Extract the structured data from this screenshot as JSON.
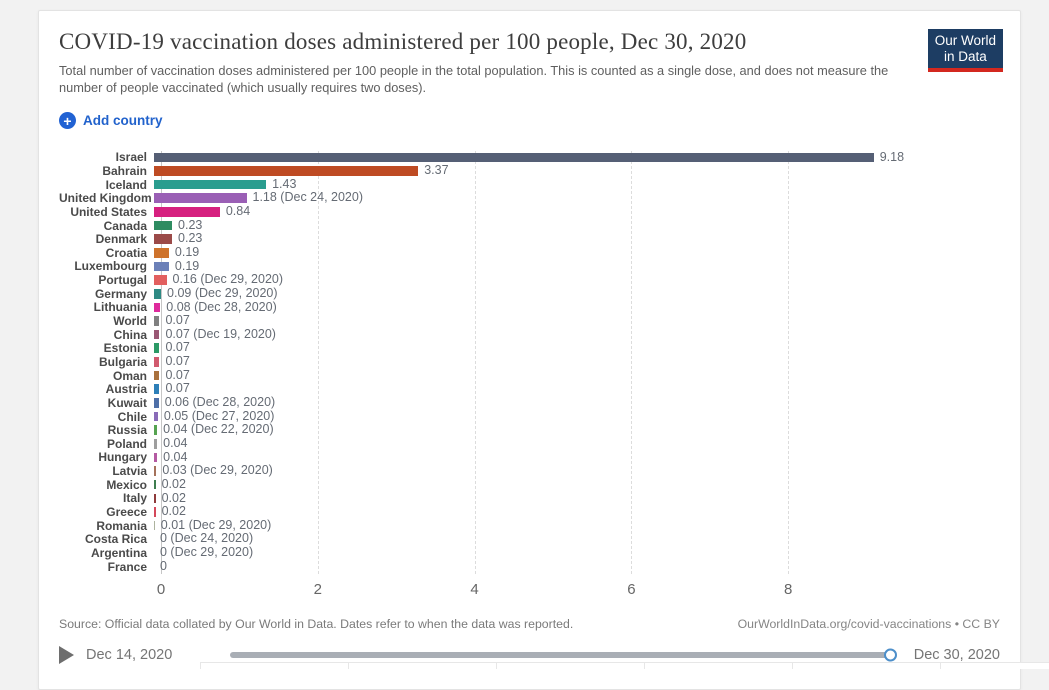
{
  "header": {
    "title": "COVID-19 vaccination doses administered per 100 people, Dec 30, 2020",
    "subtitle": "Total number of vaccination doses administered per 100 people in the total population. This is counted as a single dose, and does not measure the number of people vaccinated (which usually requires two doses).",
    "logo": {
      "line1": "Our World",
      "line2": "in Data",
      "bg": "#1d3d63",
      "accent": "#d3281f"
    }
  },
  "controls": {
    "add_country_label": "Add country",
    "plus_glyph": "+"
  },
  "chart_data": {
    "type": "bar",
    "orientation": "horizontal",
    "title": "COVID-19 vaccination doses administered per 100 people, Dec 30, 2020",
    "xlabel": "",
    "ylabel": "",
    "x_ticks": [
      0,
      2,
      4,
      6,
      8
    ],
    "xlim": [
      0,
      10.8
    ],
    "grid": "dashed-vertical",
    "series": [
      {
        "entity": "Israel",
        "value": 9.18,
        "label": "9.18",
        "color": "#555f75"
      },
      {
        "entity": "Bahrain",
        "value": 3.37,
        "label": "3.37",
        "color": "#be4b23"
      },
      {
        "entity": "Iceland",
        "value": 1.43,
        "label": "1.43",
        "color": "#2a9d8f"
      },
      {
        "entity": "United Kingdom",
        "value": 1.18,
        "label": "1.18 (Dec 24, 2020)",
        "color": "#9a5fb5"
      },
      {
        "entity": "United States",
        "value": 0.84,
        "label": "0.84",
        "color": "#d6207f"
      },
      {
        "entity": "Canada",
        "value": 0.23,
        "label": "0.23",
        "color": "#2e8c61"
      },
      {
        "entity": "Denmark",
        "value": 0.23,
        "label": "0.23",
        "color": "#9b4a48"
      },
      {
        "entity": "Croatia",
        "value": 0.19,
        "label": "0.19",
        "color": "#ce732c"
      },
      {
        "entity": "Luxembourg",
        "value": 0.19,
        "label": "0.19",
        "color": "#6b80b8"
      },
      {
        "entity": "Portugal",
        "value": 0.16,
        "label": "0.16 (Dec 29, 2020)",
        "color": "#e25f5f"
      },
      {
        "entity": "Germany",
        "value": 0.09,
        "label": "0.09 (Dec 29, 2020)",
        "color": "#2e8a84"
      },
      {
        "entity": "Lithuania",
        "value": 0.08,
        "label": "0.08 (Dec 28, 2020)",
        "color": "#de2a9c"
      },
      {
        "entity": "World",
        "value": 0.07,
        "label": "0.07",
        "color": "#808080"
      },
      {
        "entity": "China",
        "value": 0.07,
        "label": "0.07 (Dec 19, 2020)",
        "color": "#9a5774"
      },
      {
        "entity": "Estonia",
        "value": 0.07,
        "label": "0.07",
        "color": "#2c9a66"
      },
      {
        "entity": "Bulgaria",
        "value": 0.07,
        "label": "0.07",
        "color": "#d15a6e"
      },
      {
        "entity": "Oman",
        "value": 0.07,
        "label": "0.07",
        "color": "#a9713d"
      },
      {
        "entity": "Austria",
        "value": 0.07,
        "label": "0.07",
        "color": "#2d7fb8"
      },
      {
        "entity": "Kuwait",
        "value": 0.06,
        "label": "0.06 (Dec 28, 2020)",
        "color": "#4e6fa8"
      },
      {
        "entity": "Chile",
        "value": 0.05,
        "label": "0.05 (Dec 27, 2020)",
        "color": "#8a6bb8"
      },
      {
        "entity": "Russia",
        "value": 0.04,
        "label": "0.04 (Dec 22, 2020)",
        "color": "#56a350"
      },
      {
        "entity": "Poland",
        "value": 0.04,
        "label": "0.04",
        "color": "#9e9e9e"
      },
      {
        "entity": "Hungary",
        "value": 0.04,
        "label": "0.04",
        "color": "#b45aa2"
      },
      {
        "entity": "Latvia",
        "value": 0.03,
        "label": "0.03 (Dec 29, 2020)",
        "color": "#a4715a"
      },
      {
        "entity": "Mexico",
        "value": 0.02,
        "label": "0.02",
        "color": "#3e7d4f"
      },
      {
        "entity": "Italy",
        "value": 0.02,
        "label": "0.02",
        "color": "#8e3b3b"
      },
      {
        "entity": "Greece",
        "value": 0.02,
        "label": "0.02",
        "color": "#d4485a"
      },
      {
        "entity": "Romania",
        "value": 0.01,
        "label": "0.01 (Dec 29, 2020)",
        "color": "#adb39e"
      },
      {
        "entity": "Costa Rica",
        "value": 0,
        "label": "0 (Dec 24, 2020)",
        "color": null
      },
      {
        "entity": "Argentina",
        "value": 0,
        "label": "0 (Dec 29, 2020)",
        "color": null
      },
      {
        "entity": "France",
        "value": 0,
        "label": "0",
        "color": null
      }
    ]
  },
  "footer": {
    "source": "Source: Official data collated by Our World in Data. Dates refer to when the data was reported.",
    "attribution": "OurWorldInData.org/covid-vaccinations • CC BY"
  },
  "timeline": {
    "start_label": "Dec 14, 2020",
    "end_label": "Dec 30, 2020",
    "track_color": "#a9aeb5",
    "handle_color": "#4d8fca"
  }
}
